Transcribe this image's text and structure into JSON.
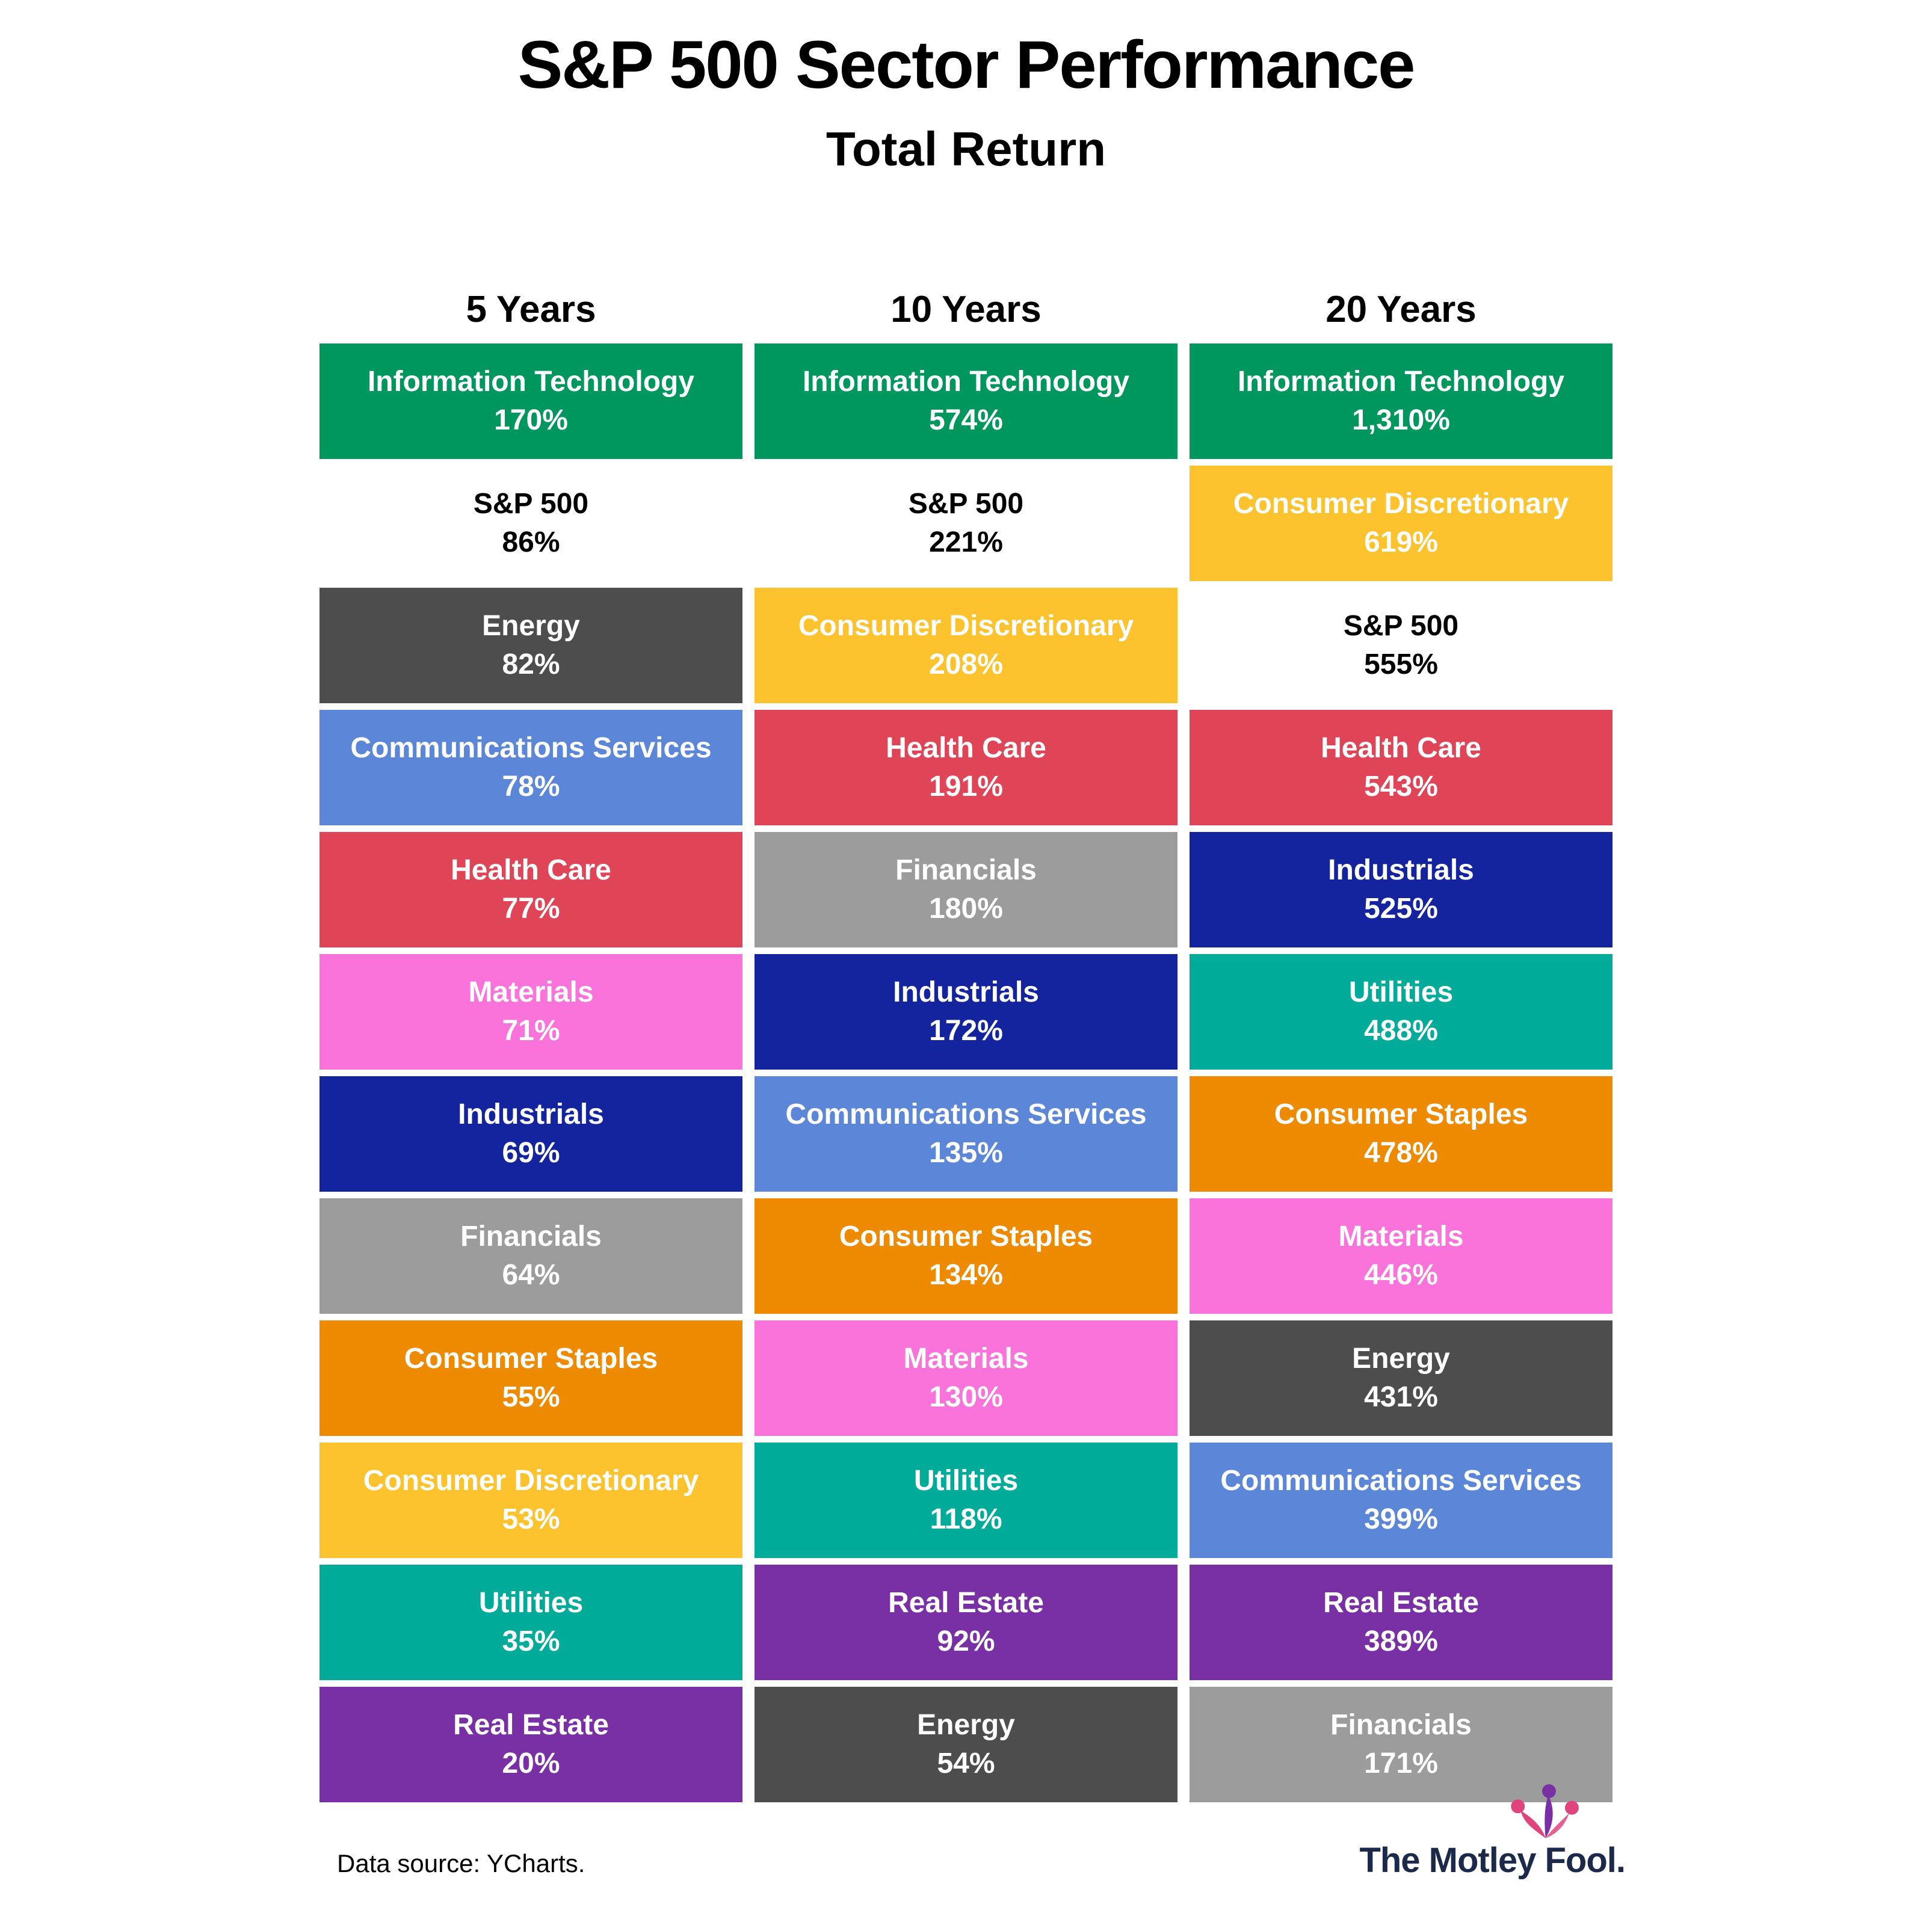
{
  "title": "S&P 500 Sector Performance",
  "subtitle": "Total Return",
  "footer": {
    "source": "Data source: YCharts.",
    "brand": "The Motley Fool."
  },
  "colors": {
    "Information Technology": "#00975f",
    "S&P 500": "#ffffff",
    "Energy": "#4d4d4d",
    "Communications Services": "#5c86d7",
    "Health Care": "#df4457",
    "Materials": "#f973da",
    "Industrials": "#14249e",
    "Financials": "#9c9c9c",
    "Consumer Staples": "#ee8a00",
    "Consumer Discretionary": "#fcc32e",
    "Utilities": "#00ab9a",
    "Real Estate": "#7930a5"
  },
  "text_colors": {
    "S&P 500": "#000000",
    "default": "#ffffff"
  },
  "chart_data": {
    "type": "table",
    "title": "S&P 500 Sector Performance",
    "subtitle": "Total Return",
    "legend_position": "none",
    "columns": [
      {
        "label": "5 Years",
        "rows": [
          {
            "sector": "Information Technology",
            "return": "170%"
          },
          {
            "sector": "S&P 500",
            "return": "86%"
          },
          {
            "sector": "Energy",
            "return": "82%"
          },
          {
            "sector": "Communications Services",
            "return": "78%"
          },
          {
            "sector": "Health Care",
            "return": "77%"
          },
          {
            "sector": "Materials",
            "return": "71%"
          },
          {
            "sector": "Industrials",
            "return": "69%"
          },
          {
            "sector": "Financials",
            "return": "64%"
          },
          {
            "sector": "Consumer Staples",
            "return": "55%"
          },
          {
            "sector": "Consumer Discretionary",
            "return": "53%"
          },
          {
            "sector": "Utilities",
            "return": "35%"
          },
          {
            "sector": "Real Estate",
            "return": "20%"
          }
        ]
      },
      {
        "label": "10 Years",
        "rows": [
          {
            "sector": "Information Technology",
            "return": "574%"
          },
          {
            "sector": "S&P 500",
            "return": "221%"
          },
          {
            "sector": "Consumer Discretionary",
            "return": "208%"
          },
          {
            "sector": "Health Care",
            "return": "191%"
          },
          {
            "sector": "Financials",
            "return": "180%"
          },
          {
            "sector": "Industrials",
            "return": "172%"
          },
          {
            "sector": "Communications Services",
            "return": "135%"
          },
          {
            "sector": "Consumer Staples",
            "return": "134%"
          },
          {
            "sector": "Materials",
            "return": "130%"
          },
          {
            "sector": "Utilities",
            "return": "118%"
          },
          {
            "sector": "Real Estate",
            "return": "92%"
          },
          {
            "sector": "Energy",
            "return": "54%"
          }
        ]
      },
      {
        "label": "20 Years",
        "rows": [
          {
            "sector": "Information Technology",
            "return": "1,310%"
          },
          {
            "sector": "Consumer Discretionary",
            "return": "619%"
          },
          {
            "sector": "S&P 500",
            "return": "555%"
          },
          {
            "sector": "Health Care",
            "return": "543%"
          },
          {
            "sector": "Industrials",
            "return": "525%"
          },
          {
            "sector": "Utilities",
            "return": "488%"
          },
          {
            "sector": "Consumer Staples",
            "return": "478%"
          },
          {
            "sector": "Materials",
            "return": "446%"
          },
          {
            "sector": "Energy",
            "return": "431%"
          },
          {
            "sector": "Communications Services",
            "return": "399%"
          },
          {
            "sector": "Real Estate",
            "return": "389%"
          },
          {
            "sector": "Financials",
            "return": "171%"
          }
        ]
      }
    ]
  }
}
